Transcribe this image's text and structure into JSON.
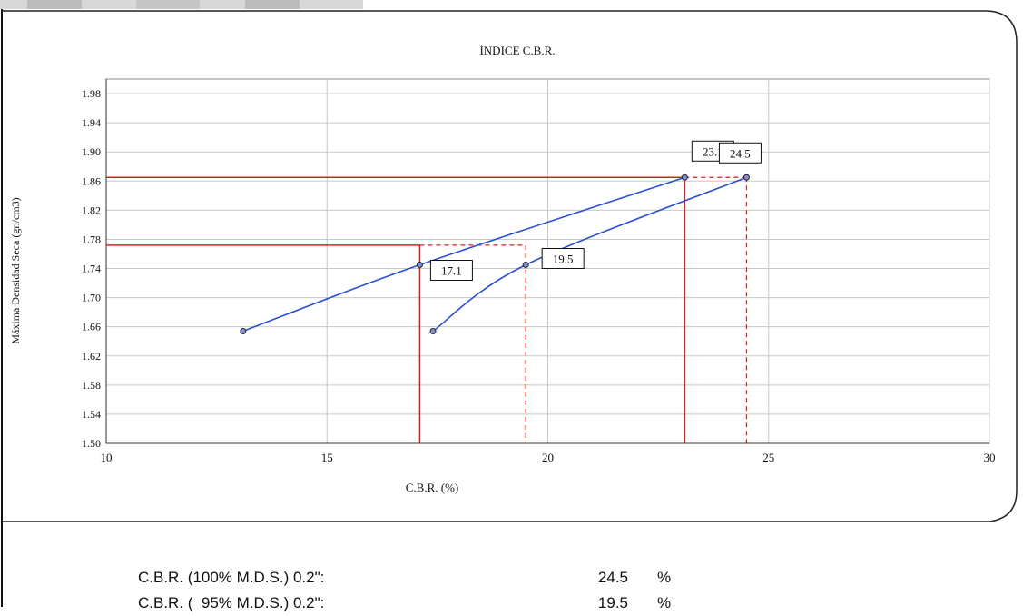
{
  "chart_data": {
    "type": "line",
    "title": "ÍNDICE C.B.R.",
    "xlabel": "C.B.R. (%)",
    "ylabel": "Máxima Densidad Seca (gr./cm3)",
    "xlim": [
      10,
      30
    ],
    "ylim": [
      1.5,
      2.0
    ],
    "x_ticks": [
      "10",
      "15",
      "20",
      "25",
      "30"
    ],
    "y_ticks": [
      "1.50",
      "1.54",
      "1.58",
      "1.62",
      "1.66",
      "1.70",
      "1.74",
      "1.78",
      "1.82",
      "1.86",
      "1.90",
      "1.94",
      "1.98"
    ],
    "grid": true,
    "series": [
      {
        "x": [
          13.1,
          17.1,
          23.1
        ],
        "y": [
          1.654,
          1.745,
          1.865
        ]
      },
      {
        "x": [
          17.4,
          19.5,
          24.5
        ],
        "y": [
          1.654,
          1.745,
          1.865
        ]
      }
    ],
    "reference_lines": {
      "max_density": 1.865,
      "density_95": 1.772,
      "solid_x": [
        17.1,
        23.1
      ],
      "dashed_x": [
        19.5,
        24.5
      ]
    },
    "data_labels": [
      {
        "x": 17.1,
        "y": 1.745,
        "text": "17.1"
      },
      {
        "x": 19.5,
        "y": 1.745,
        "text": "19.5"
      },
      {
        "x": 23.1,
        "y": 1.865,
        "text": "23.1"
      },
      {
        "x": 24.5,
        "y": 1.865,
        "text": "24.5"
      }
    ],
    "colors": {
      "series": "#2a4fd0",
      "reference": "#e01b1b",
      "grid": "#c8c8c8"
    }
  },
  "summary": [
    {
      "label": "C.B.R. (100% M.D.S.) 0.2\":",
      "value": "24.5",
      "unit": "%"
    },
    {
      "label": "C.B.R. (  95% M.D.S.) 0.2\":",
      "value": "19.5",
      "unit": "%"
    }
  ]
}
